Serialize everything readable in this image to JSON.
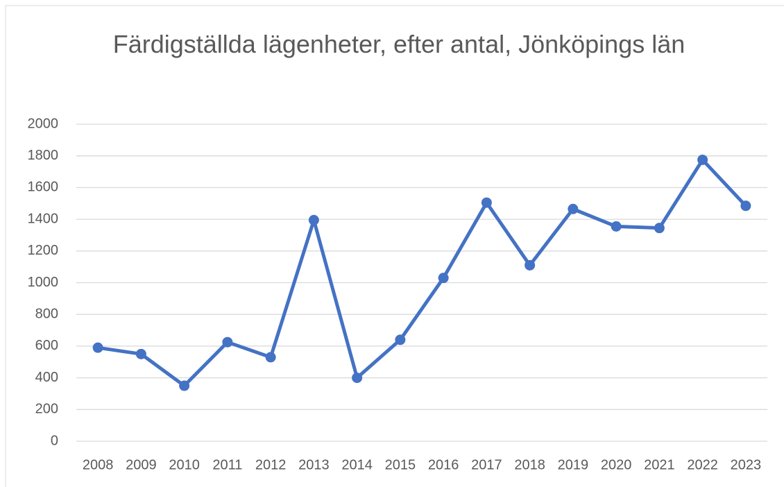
{
  "chart_data": {
    "type": "line",
    "title": "Färdigställda lägenheter, efter antal, Jönköpings län",
    "categories": [
      "2008",
      "2009",
      "2010",
      "2011",
      "2012",
      "2013",
      "2014",
      "2015",
      "2016",
      "2017",
      "2018",
      "2019",
      "2020",
      "2021",
      "2022",
      "2023"
    ],
    "values": [
      590,
      550,
      350,
      625,
      530,
      1395,
      400,
      640,
      1030,
      1505,
      1110,
      1465,
      1355,
      1345,
      1775,
      1485
    ],
    "color": "#4472c4",
    "ylim": [
      0,
      2000
    ],
    "yticks": [
      0,
      200,
      400,
      600,
      800,
      1000,
      1200,
      1400,
      1600,
      1800,
      2000
    ],
    "grid": true
  }
}
